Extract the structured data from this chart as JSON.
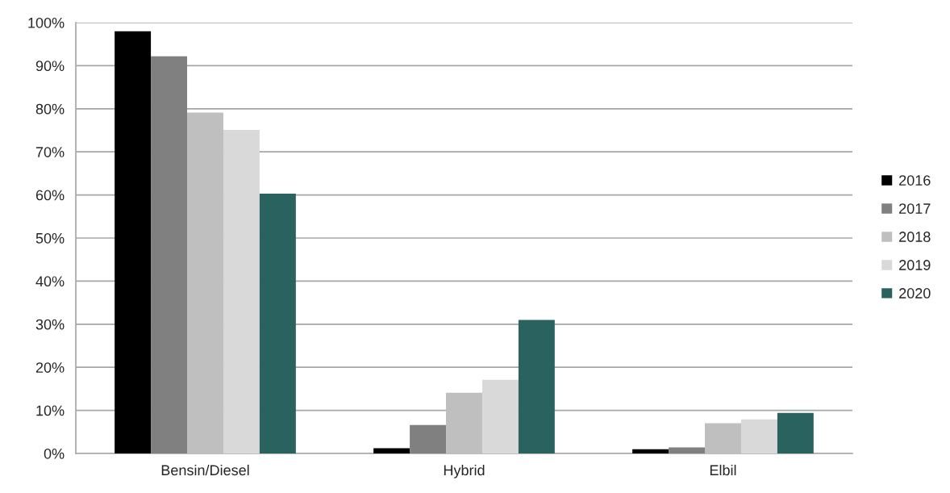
{
  "chart_data": {
    "type": "bar",
    "categories": [
      "Bensin/Diesel",
      "Hybrid",
      "Elbil"
    ],
    "series": [
      {
        "name": "2016",
        "color": "#000000",
        "values": [
          98,
          1.2,
          1.0
        ]
      },
      {
        "name": "2017",
        "color": "#808080",
        "values": [
          92.2,
          6.6,
          1.4
        ]
      },
      {
        "name": "2018",
        "color": "#bfbfbf",
        "values": [
          79.1,
          14.1,
          7.0
        ]
      },
      {
        "name": "2019",
        "color": "#d9d9d9",
        "values": [
          75.1,
          17.1,
          7.9
        ]
      },
      {
        "name": "2020",
        "color": "#2a6260",
        "values": [
          60.3,
          31.0,
          9.4
        ]
      }
    ],
    "ylim": [
      0,
      100
    ],
    "yticks": [
      {
        "value": 0,
        "label": "0%"
      },
      {
        "value": 10,
        "label": "10%"
      },
      {
        "value": 20,
        "label": "20%"
      },
      {
        "value": 30,
        "label": "30%"
      },
      {
        "value": 40,
        "label": "40%"
      },
      {
        "value": 50,
        "label": "50%"
      },
      {
        "value": 60,
        "label": "60%"
      },
      {
        "value": 70,
        "label": "70%"
      },
      {
        "value": 80,
        "label": "80%"
      },
      {
        "value": 90,
        "label": "90%"
      },
      {
        "value": 100,
        "label": "100%"
      }
    ],
    "grid": "y",
    "legend": "right"
  }
}
